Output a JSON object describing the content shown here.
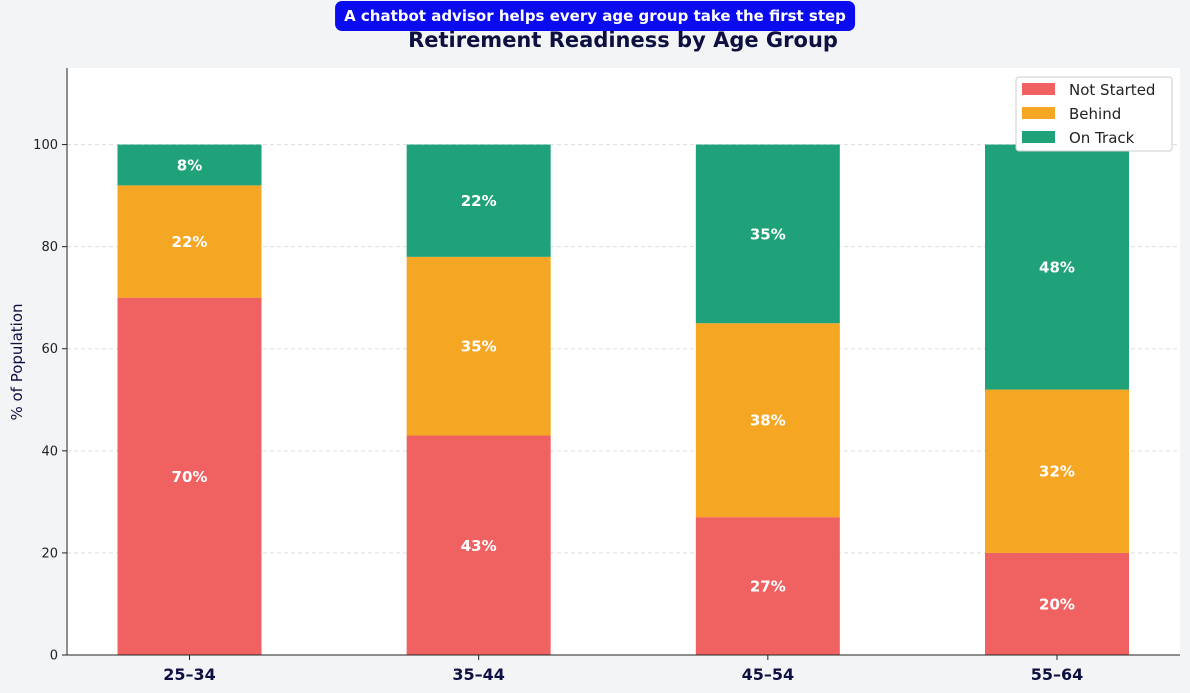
{
  "banner": "A chatbot advisor helps every age group take the first step",
  "chart_data": {
    "type": "bar",
    "stacked": true,
    "title": "Retirement Readiness by Age Group",
    "xlabel": "",
    "ylabel": "% of Population",
    "categories": [
      "25–34",
      "35–44",
      "45–54",
      "55–64"
    ],
    "series": [
      {
        "name": "Not Started",
        "color": "#f06262",
        "values": [
          70,
          43,
          27,
          20
        ],
        "labels": [
          "70%",
          "43%",
          "27%",
          "20%"
        ]
      },
      {
        "name": "Behind",
        "color": "#f5a623",
        "values": [
          22,
          35,
          38,
          32
        ],
        "labels": [
          "22%",
          "35%",
          "38%",
          "32%"
        ]
      },
      {
        "name": "On Track",
        "color": "#1fa27a",
        "values": [
          8,
          22,
          35,
          48
        ],
        "labels": [
          "8%",
          "22%",
          "35%",
          "48%"
        ]
      }
    ],
    "ylim": [
      0,
      115
    ],
    "yticks": [
      "0",
      "20",
      "40",
      "60",
      "80",
      "100"
    ],
    "grid": true,
    "legend_position": "top-right"
  }
}
